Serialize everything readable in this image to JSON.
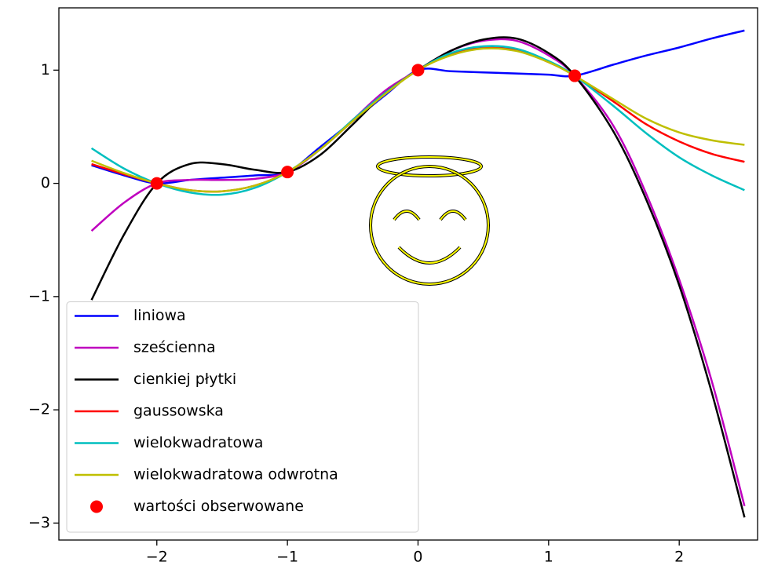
{
  "chart_data": {
    "type": "line",
    "x": [
      -2.5,
      -2.25,
      -2,
      -1.75,
      -1.5,
      -1.25,
      -1,
      -0.75,
      -0.5,
      -0.25,
      0,
      0.25,
      0.5,
      0.75,
      1,
      1.2,
      1.5,
      1.75,
      2,
      2.25,
      2.5
    ],
    "series": [
      {
        "name": "liniowa",
        "color": "#0000ff",
        "values": [
          0.16,
          0.07,
          0,
          0.03,
          0.05,
          0.07,
          0.1,
          0.32,
          0.55,
          0.78,
          1,
          0.99,
          0.98,
          0.97,
          0.96,
          0.95,
          1.05,
          1.13,
          1.2,
          1.28,
          1.35
        ]
      },
      {
        "name": "sześcienna",
        "color": "#bf00bf",
        "values": [
          -0.42,
          -0.17,
          0,
          0.03,
          0.03,
          0.04,
          0.1,
          0.3,
          0.56,
          0.82,
          1,
          1.17,
          1.26,
          1.26,
          1.13,
          0.95,
          0.5,
          -0.1,
          -0.85,
          -1.75,
          -2.85
        ]
      },
      {
        "name": "cienkiej płytki",
        "color": "#000000",
        "values": [
          -1.03,
          -0.45,
          0,
          0.17,
          0.17,
          0.12,
          0.1,
          0.25,
          0.52,
          0.8,
          1,
          1.17,
          1.27,
          1.28,
          1.15,
          0.95,
          0.45,
          -0.15,
          -0.9,
          -1.85,
          -2.95
        ]
      },
      {
        "name": "gaussowska",
        "color": "#ff0000",
        "values": [
          0.17,
          0.08,
          0,
          -0.06,
          -0.07,
          -0.02,
          0.1,
          0.3,
          0.55,
          0.8,
          1,
          1.14,
          1.2,
          1.18,
          1.07,
          0.95,
          0.72,
          0.52,
          0.37,
          0.26,
          0.19
        ]
      },
      {
        "name": "wielokwadratowa",
        "color": "#00bfbf",
        "values": [
          0.31,
          0.13,
          0,
          -0.08,
          -0.1,
          -0.04,
          0.1,
          0.3,
          0.56,
          0.8,
          1,
          1.15,
          1.21,
          1.19,
          1.08,
          0.95,
          0.68,
          0.44,
          0.23,
          0.07,
          -0.06
        ]
      },
      {
        "name": "wielokwadratowa odwrotna",
        "color": "#bfbf00",
        "values": [
          0.2,
          0.09,
          0,
          -0.06,
          -0.07,
          -0.02,
          0.1,
          0.3,
          0.55,
          0.79,
          1,
          1.13,
          1.19,
          1.17,
          1.07,
          0.95,
          0.74,
          0.57,
          0.45,
          0.38,
          0.34
        ]
      }
    ],
    "points": {
      "name": "wartości obserwowane",
      "color": "#ff0000",
      "x": [
        -2,
        -1,
        0,
        1.2
      ],
      "values": [
        0,
        0.1,
        1,
        0.95
      ]
    },
    "xlim": [
      -2.75,
      2.6
    ],
    "ylim": [
      -3.15,
      1.55
    ],
    "xticks": [
      {
        "value": -2,
        "label": "−2"
      },
      {
        "value": -1,
        "label": "−1"
      },
      0,
      1,
      2
    ],
    "yticks": [
      {
        "value": -3,
        "label": "−3"
      },
      {
        "value": -2,
        "label": "−2"
      },
      {
        "value": -1,
        "label": "−1"
      },
      0,
      1
    ],
    "legend": "lower left"
  }
}
